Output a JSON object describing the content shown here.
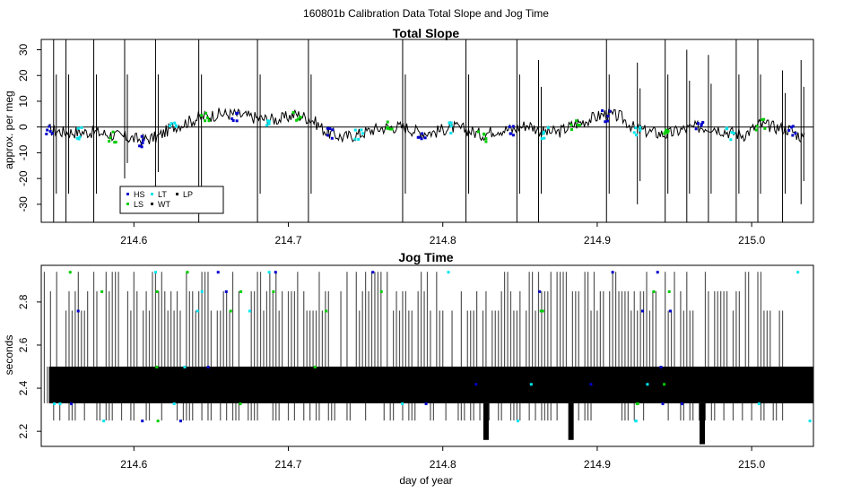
{
  "figure": {
    "title": "160801b   Calibration Data Total Slope and Jog Time",
    "xlabel": "day of year"
  },
  "chart_data": [
    {
      "type": "line",
      "title": "Total Slope",
      "ylabel": "approx. per meg",
      "xlabel": "",
      "xlim": [
        214.54,
        215.04
      ],
      "ylim": [
        -37,
        34
      ],
      "xticks": [
        214.6,
        214.7,
        214.8,
        214.9,
        215.0
      ],
      "yticks": [
        -30,
        -20,
        -10,
        0,
        10,
        20,
        30
      ],
      "reference_line_y": 0,
      "legend": {
        "placement": "bottom-left",
        "entries": [
          {
            "label": "HS",
            "color": "#0000cc"
          },
          {
            "label": "LT",
            "color": "#00e5ee"
          },
          {
            "label": "LP",
            "color": "#000000"
          },
          {
            "label": "LS",
            "color": "#00cc00"
          },
          {
            "label": "WT",
            "color": "#000000"
          }
        ]
      },
      "series": [
        {
          "name": "slope",
          "x": [
            214.545,
            214.555,
            214.565,
            214.575,
            214.585,
            214.595,
            214.605,
            214.615,
            214.625,
            214.635,
            214.645,
            214.655,
            214.665,
            214.675,
            214.685,
            214.695,
            214.705,
            214.715,
            214.725,
            214.735,
            214.745,
            214.755,
            214.765,
            214.775,
            214.785,
            214.795,
            214.805,
            214.815,
            214.825,
            214.835,
            214.845,
            214.855,
            214.865,
            214.875,
            214.885,
            214.895,
            214.905,
            214.915,
            214.925,
            214.935,
            214.945,
            214.955,
            214.965,
            214.975,
            214.985,
            214.995,
            215.005,
            215.015,
            215.025,
            215.035
          ],
          "values": [
            -1,
            -2,
            -2,
            -2,
            -3,
            -4,
            -5,
            -4,
            0,
            2,
            4,
            5,
            5,
            4,
            3,
            3,
            5,
            3,
            -2,
            -4,
            -3,
            -1,
            0,
            0,
            -2,
            -2,
            0,
            -1,
            -3,
            -1,
            -1,
            1,
            -2,
            -2,
            1,
            3,
            5,
            4,
            -1,
            -2,
            -3,
            -1,
            0,
            0,
            -2,
            -3,
            1,
            0,
            -1,
            -5
          ]
        }
      ],
      "spikes": [
        {
          "x": 214.548,
          "low": -37,
          "high": 34
        },
        {
          "x": 214.556,
          "low": -37,
          "high": 34
        },
        {
          "x": 214.574,
          "low": -37,
          "high": 34
        },
        {
          "x": 214.594,
          "low": -20,
          "high": 34
        },
        {
          "x": 214.614,
          "low": -25,
          "high": 34
        },
        {
          "x": 214.642,
          "low": -37,
          "high": 34
        },
        {
          "x": 214.68,
          "low": -37,
          "high": 34
        },
        {
          "x": 214.713,
          "low": -37,
          "high": 34
        },
        {
          "x": 214.774,
          "low": -37,
          "high": 34
        },
        {
          "x": 214.815,
          "low": -37,
          "high": 34
        },
        {
          "x": 214.848,
          "low": -37,
          "high": 34
        },
        {
          "x": 214.862,
          "low": -37,
          "high": 26
        },
        {
          "x": 214.906,
          "low": -37,
          "high": 34
        },
        {
          "x": 214.926,
          "low": -30,
          "high": 25
        },
        {
          "x": 214.944,
          "low": -37,
          "high": 34
        },
        {
          "x": 214.958,
          "low": -37,
          "high": 30
        },
        {
          "x": 214.972,
          "low": -37,
          "high": 28
        },
        {
          "x": 214.99,
          "low": -37,
          "high": 34
        },
        {
          "x": 215.004,
          "low": -37,
          "high": 34
        },
        {
          "x": 215.02,
          "low": -37,
          "high": 22
        },
        {
          "x": 215.032,
          "low": -30,
          "high": 26
        }
      ]
    },
    {
      "type": "line",
      "title": "Jog Time",
      "ylabel": "seconds",
      "xlabel": "day of year",
      "xlim": [
        214.54,
        215.04
      ],
      "ylim": [
        2.13,
        2.97
      ],
      "xticks": [
        214.6,
        214.7,
        214.8,
        214.9,
        215.0
      ],
      "yticks": [
        2.2,
        2.4,
        2.6,
        2.8
      ],
      "levels": [
        2.25,
        2.33,
        2.42,
        2.5,
        2.76,
        2.85,
        2.94
      ],
      "band": {
        "low": 2.33,
        "high": 2.5
      },
      "dips": [
        {
          "x": 214.883,
          "low": 2.16
        },
        {
          "x": 214.968,
          "low": 2.14
        },
        {
          "x": 214.828,
          "low": 2.16
        }
      ]
    }
  ]
}
